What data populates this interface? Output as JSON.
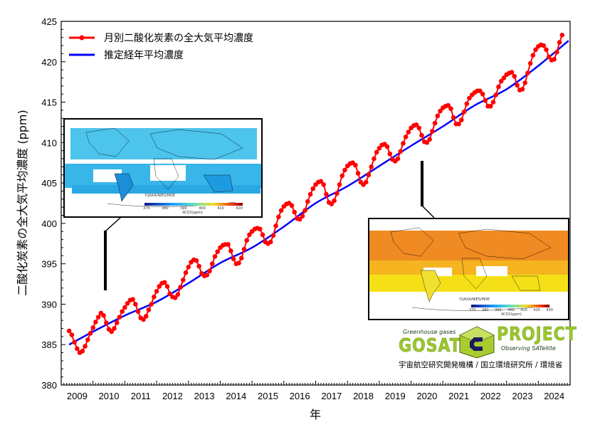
{
  "chart_data": {
    "type": "line",
    "title": "",
    "xlabel": "年",
    "ylabel": "二酸化炭素の全大気平均濃度 (ppm)",
    "xlim": [
      2009.0,
      2025.0
    ],
    "ylim": [
      380,
      425
    ],
    "yticks": [
      380,
      385,
      390,
      395,
      400,
      405,
      410,
      415,
      420,
      425
    ],
    "xtick_labels": [
      "2009",
      "2010",
      "2011",
      "2012",
      "2013",
      "2014",
      "2015",
      "2016",
      "2017",
      "2018",
      "2019",
      "2020",
      "2021",
      "2022",
      "2023",
      "2024"
    ],
    "grid": false,
    "legend_position": "top-left",
    "series": [
      {
        "name": "月別二酸化炭素の全大気平均濃度",
        "color": "#ff0000",
        "marker": "circle",
        "start": "2009-04",
        "values": [
          386.7,
          386.2,
          385.3,
          384.5,
          384.0,
          384.2,
          384.8,
          385.6,
          386.4,
          387.1,
          387.8,
          388.4,
          388.9,
          388.6,
          387.7,
          386.9,
          386.6,
          387.0,
          387.7,
          388.4,
          389.1,
          389.6,
          390.1,
          390.5,
          390.6,
          390.0,
          389.1,
          388.3,
          388.1,
          388.5,
          389.3,
          390.0,
          390.9,
          391.6,
          392.2,
          392.6,
          392.7,
          392.2,
          391.3,
          390.9,
          390.8,
          391.2,
          392.1,
          393.0,
          393.9,
          394.6,
          395.2,
          395.5,
          395.4,
          394.7,
          393.8,
          393.5,
          393.6,
          394.1,
          395.0,
          395.9,
          396.5,
          397.0,
          397.3,
          397.4,
          397.4,
          396.6,
          395.6,
          395.0,
          395.1,
          395.7,
          396.8,
          397.9,
          398.6,
          399.0,
          399.3,
          399.4,
          399.3,
          398.6,
          397.7,
          397.5,
          397.7,
          398.5,
          399.7,
          400.8,
          401.6,
          402.1,
          402.4,
          402.5,
          402.2,
          401.4,
          400.6,
          400.5,
          400.9,
          401.6,
          402.7,
          403.6,
          404.3,
          404.8,
          405.1,
          405.2,
          404.8,
          403.6,
          402.6,
          402.4,
          402.8,
          403.7,
          404.8,
          405.9,
          406.6,
          407.1,
          407.4,
          407.5,
          407.2,
          406.2,
          405.1,
          404.8,
          405.1,
          406.0,
          407.0,
          408.0,
          408.8,
          409.3,
          409.7,
          409.8,
          409.5,
          408.6,
          407.9,
          407.7,
          408.0,
          408.9,
          409.9,
          410.7,
          411.3,
          411.8,
          412.1,
          412.2,
          411.8,
          410.9,
          410.1,
          410.0,
          410.4,
          411.4,
          412.4,
          413.3,
          413.9,
          414.3,
          414.5,
          414.6,
          414.2,
          413.1,
          412.3,
          412.3,
          412.8,
          413.8,
          414.8,
          415.5,
          415.9,
          416.2,
          416.4,
          416.4,
          416.0,
          415.2,
          414.5,
          414.5,
          415.0,
          415.9,
          416.9,
          417.6,
          418.0,
          418.4,
          418.6,
          418.7,
          418.2,
          417.1,
          416.5,
          416.6,
          417.4,
          418.6,
          419.8,
          420.8,
          421.5,
          421.9,
          422.1,
          422.0,
          421.5,
          420.6,
          420.2,
          420.3,
          421.2,
          422.4,
          423.3
        ]
      },
      {
        "name": "推定経年平均濃度",
        "color": "#0000ff",
        "marker": "none",
        "start": "2009-04",
        "values_yearly_anchor": {
          "x": [
            2009.25,
            2010.0,
            2011.0,
            2012.0,
            2013.0,
            2014.0,
            2015.0,
            2016.0,
            2017.0,
            2018.0,
            2019.0,
            2020.0,
            2021.0,
            2022.0,
            2023.0,
            2024.0,
            2024.95
          ],
          "y": [
            385.0,
            386.6,
            388.6,
            390.3,
            392.6,
            395.1,
            397.0,
            399.6,
            402.5,
            404.6,
            407.1,
            409.6,
            412.0,
            414.6,
            416.6,
            419.5,
            422.6
          ]
        }
      }
    ]
  },
  "insets": {
    "left_map": {
      "credit": "©JAXA/NIES/MOE",
      "colorbar_labels": [
        "370",
        "380",
        "390",
        "400",
        "410",
        "420"
      ],
      "colorbar_title": "XCO2(ppm)",
      "tone": "#3cb8e8"
    },
    "right_map": {
      "credit": "©JAXA/NIES/MOE",
      "colorbar_labels": [
        "370",
        "380",
        "390",
        "400",
        "410",
        "420",
        "430"
      ],
      "colorbar_title": "XCO2(ppm)",
      "tone": "#f5a020"
    }
  },
  "logo": {
    "tagline_top": "Greenhouse gases",
    "word_left": "GOSAT",
    "word_right": "PROJECT",
    "tagline_bottom": "Observing SATellite",
    "organizations": "宇宙航空研究開発機構 / 国立環境研究所 / 環境省"
  }
}
